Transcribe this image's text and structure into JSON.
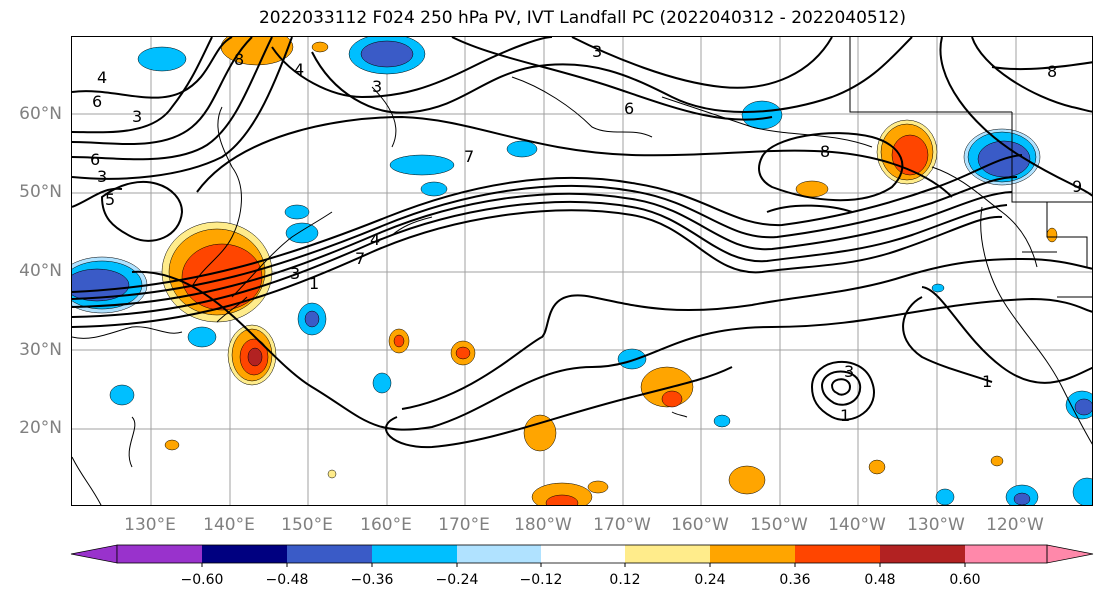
{
  "title": "2022033112 F024 250 hPa PV, IVT Landfall PC (2022040312 - 2022040512)",
  "lat_labels": [
    "60°N",
    "50°N",
    "40°N",
    "30°N",
    "20°N"
  ],
  "lon_labels": [
    "130°E",
    "140°E",
    "150°E",
    "160°E",
    "170°E",
    "180°W",
    "170°W",
    "160°W",
    "150°W",
    "140°W",
    "130°W",
    "120°W"
  ],
  "contour_labels": [
    "4",
    "6",
    "3",
    "8",
    "4",
    "3",
    "5",
    "6",
    "3",
    "3",
    "6",
    "7",
    "8",
    "8",
    "9",
    "4",
    "3",
    "1",
    "7",
    "3",
    "1",
    "1"
  ],
  "colorbar": {
    "ticks": [
      "−0.60",
      "−0.48",
      "−0.36",
      "−0.24",
      "−0.12",
      "0.12",
      "0.24",
      "0.36",
      "0.48",
      "0.60"
    ],
    "colors": [
      "#9932cc",
      "#000080",
      "#3a5bc7",
      "#00bfff",
      "#b0e2ff",
      "#ffffff",
      "#ffec8b",
      "#ffa500",
      "#ff4500",
      "#b22222",
      "#ff88aa"
    ]
  },
  "colors": {
    "grid": "#a0a0a0",
    "contour": "#000000",
    "coast": "#000000"
  }
}
